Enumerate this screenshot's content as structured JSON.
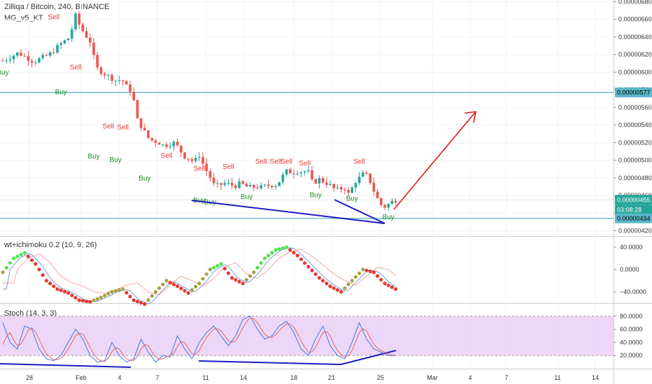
{
  "header": {
    "symbol_title": "Zilliqa / Bitcoin, 240, BINANCE",
    "indicator_label": "MG_v5_KT"
  },
  "panes": {
    "oscillator_label": "wt+ichimoku 0.2 (10, 9, 26)",
    "stoch_label": "Stoch (14, 3, 3)"
  },
  "colors": {
    "up_candle": "#26a69a",
    "down_candle": "#ef5350",
    "level_line": "#5ab8c8",
    "trend_line": "#1b1bc2",
    "arrow": "#e01919",
    "buy_text": "#1f8a2a",
    "sell_text": "#e53935",
    "stoch_fill": "#e6c9f5",
    "stoch_k": "#4a78d8",
    "stoch_d": "#e06666",
    "dot_green": "#4be54b",
    "dot_red": "#e53935",
    "dot_olive": "#a5a34a"
  },
  "chart_data": [
    {
      "type": "candlestick",
      "title": "Zilliqa / Bitcoin, 240, BINANCE",
      "y_axis_ticks": [
        "0.00000680",
        "0.00000660",
        "0.00000640",
        "0.00000620",
        "0.00000600",
        "0.00000580",
        "0.00000560",
        "0.00000540",
        "0.00000520",
        "0.00000500",
        "0.00000480",
        "0.00000460",
        "0.00000440",
        "0.00000420"
      ],
      "ylim": [
        4.14e-06,
        6.82e-06
      ],
      "x_axis_labels": [
        "28",
        "Feb",
        "4",
        "7",
        "11",
        "14",
        "18",
        "21",
        "25",
        "Mar",
        "4",
        "7",
        "11",
        "14"
      ],
      "price_labels": {
        "resistance": "0.00000577",
        "current": "0.00000455",
        "countdown": "03:08:28",
        "support": "0.00000434"
      },
      "horizontal_levels": [
        5.77e-06,
        4.34e-06
      ],
      "close_path": [
        [
          0,
          613
        ],
        [
          3,
          622
        ],
        [
          6,
          612
        ],
        [
          9,
          620
        ],
        [
          11,
          631
        ],
        [
          13,
          640
        ],
        [
          14,
          665
        ],
        [
          15,
          651
        ],
        [
          17,
          634
        ],
        [
          18,
          605
        ],
        [
          20,
          597
        ],
        [
          22,
          590
        ],
        [
          23,
          592
        ],
        [
          24,
          583
        ],
        [
          25,
          578
        ],
        [
          26,
          546
        ],
        [
          27,
          537
        ],
        [
          28,
          526
        ],
        [
          29,
          522
        ],
        [
          30,
          521
        ],
        [
          31,
          517
        ],
        [
          32,
          518
        ],
        [
          33,
          520
        ],
        [
          34,
          514
        ],
        [
          35,
          505
        ],
        [
          36,
          502
        ],
        [
          37,
          498
        ],
        [
          38,
          506
        ],
        [
          39,
          492
        ],
        [
          40,
          482
        ],
        [
          41,
          470
        ],
        [
          43,
          474
        ],
        [
          44,
          472
        ],
        [
          45,
          471
        ],
        [
          46,
          474
        ],
        [
          47,
          470
        ],
        [
          48,
          469
        ],
        [
          49,
          470
        ],
        [
          50,
          469
        ],
        [
          51,
          471
        ],
        [
          52,
          472
        ],
        [
          53,
          472
        ],
        [
          54,
          481
        ],
        [
          55,
          488
        ],
        [
          56,
          486
        ],
        [
          57,
          488
        ],
        [
          58,
          487
        ],
        [
          59,
          488
        ],
        [
          60,
          473
        ],
        [
          61,
          479
        ],
        [
          62,
          476
        ],
        [
          63,
          473
        ],
        [
          64,
          468
        ],
        [
          65,
          466
        ],
        [
          66,
          470
        ],
        [
          67,
          460
        ],
        [
          68,
          475
        ],
        [
          69,
          480
        ],
        [
          70,
          486
        ],
        [
          71,
          477
        ],
        [
          72,
          462
        ],
        [
          73,
          450
        ],
        [
          74,
          447
        ],
        [
          75,
          452
        ],
        [
          76,
          455
        ]
      ],
      "signals": [
        {
          "label": "Buy",
          "x": 0,
          "price": 5.97e-06
        },
        {
          "label": "Sell",
          "x": 14,
          "price": 6.6e-06
        },
        {
          "label": "Sell",
          "x": 20,
          "price": 6.03e-06
        },
        {
          "label": "Buy",
          "x": 16,
          "price": 5.75e-06
        },
        {
          "label": "Sell",
          "x": 29,
          "price": 5.36e-06
        },
        {
          "label": "Sell",
          "x": 33,
          "price": 5.35e-06
        },
        {
          "label": "Buy",
          "x": 25,
          "price": 5.02e-06
        },
        {
          "label": "Buy",
          "x": 31,
          "price": 4.98e-06
        },
        {
          "label": "Sell",
          "x": 45,
          "price": 5.03e-06
        },
        {
          "label": "Buy",
          "x": 39,
          "price": 4.77e-06
        },
        {
          "label": "Sell",
          "x": 54,
          "price": 4.88e-06
        },
        {
          "label": "Sell",
          "x": 62,
          "price": 4.9e-06
        },
        {
          "label": "Buy",
          "x": 54,
          "price": 4.52e-06
        },
        {
          "label": "Buy",
          "x": 57,
          "price": 4.5e-06
        },
        {
          "label": "Buy",
          "x": 67,
          "price": 4.56e-06
        },
        {
          "label": "Sell",
          "x": 71,
          "price": 4.96e-06
        },
        {
          "label": "Sell",
          "x": 75,
          "price": 4.96e-06
        },
        {
          "label": "Sell",
          "x": 78,
          "price": 4.96e-06
        },
        {
          "label": "Sell",
          "x": 83,
          "price": 4.94e-06
        },
        {
          "label": "Buy",
          "x": 86,
          "price": 4.58e-06
        },
        {
          "label": "Sell",
          "x": 98,
          "price": 4.96e-06
        },
        {
          "label": "Buy",
          "x": 96,
          "price": 4.54e-06
        },
        {
          "label": "Buy",
          "x": 106,
          "price": 4.33e-06
        }
      ]
    },
    {
      "type": "line",
      "title": "wt+ichimoku 0.2 (10, 9, 26)",
      "y_axis_ticks": [
        "40.0000",
        "0.0000",
        "−40.0000"
      ],
      "ylim": [
        -60,
        60
      ],
      "wave": [
        [
          0,
          -5
        ],
        [
          3,
          20
        ],
        [
          6,
          30
        ],
        [
          9,
          10
        ],
        [
          12,
          -20
        ],
        [
          15,
          -35
        ],
        [
          18,
          -42
        ],
        [
          21,
          -55
        ],
        [
          24,
          -58
        ],
        [
          27,
          -50
        ],
        [
          30,
          -40
        ],
        [
          33,
          -35
        ],
        [
          36,
          -55
        ],
        [
          39,
          -62
        ],
        [
          42,
          -40
        ],
        [
          45,
          -20
        ],
        [
          48,
          -30
        ],
        [
          51,
          -42
        ],
        [
          54,
          -25
        ],
        [
          57,
          0
        ],
        [
          60,
          10
        ],
        [
          63,
          -15
        ],
        [
          66,
          -25
        ],
        [
          69,
          -5
        ],
        [
          72,
          20
        ],
        [
          75,
          35
        ],
        [
          78,
          40
        ],
        [
          81,
          25
        ],
        [
          84,
          5
        ],
        [
          87,
          -15
        ],
        [
          90,
          -30
        ],
        [
          93,
          -40
        ],
        [
          96,
          -20
        ],
        [
          99,
          0
        ],
        [
          102,
          -5
        ],
        [
          105,
          -25
        ],
        [
          108,
          -35
        ]
      ]
    },
    {
      "type": "line",
      "title": "Stoch (14, 3, 3)",
      "y_axis_ticks": [
        "80.0000",
        "60.0000",
        "40.0000",
        "20.0000"
      ],
      "ylim": [
        0,
        100
      ],
      "band": [
        20,
        80
      ],
      "k": [
        [
          0,
          70
        ],
        [
          2,
          40
        ],
        [
          4,
          30
        ],
        [
          6,
          65
        ],
        [
          8,
          60
        ],
        [
          10,
          30
        ],
        [
          12,
          15
        ],
        [
          14,
          12
        ],
        [
          16,
          20
        ],
        [
          18,
          40
        ],
        [
          20,
          60
        ],
        [
          22,
          45
        ],
        [
          24,
          20
        ],
        [
          26,
          10
        ],
        [
          28,
          12
        ],
        [
          30,
          40
        ],
        [
          32,
          20
        ],
        [
          34,
          10
        ],
        [
          36,
          15
        ],
        [
          38,
          45
        ],
        [
          40,
          25
        ],
        [
          42,
          10
        ],
        [
          44,
          20
        ],
        [
          46,
          18
        ],
        [
          48,
          50
        ],
        [
          50,
          30
        ],
        [
          52,
          15
        ],
        [
          54,
          40
        ],
        [
          56,
          55
        ],
        [
          58,
          65
        ],
        [
          60,
          50
        ],
        [
          62,
          35
        ],
        [
          64,
          50
        ],
        [
          66,
          75
        ],
        [
          68,
          80
        ],
        [
          70,
          60
        ],
        [
          72,
          45
        ],
        [
          74,
          50
        ],
        [
          76,
          65
        ],
        [
          78,
          72
        ],
        [
          80,
          55
        ],
        [
          82,
          30
        ],
        [
          84,
          20
        ],
        [
          86,
          45
        ],
        [
          88,
          65
        ],
        [
          90,
          35
        ],
        [
          92,
          20
        ],
        [
          94,
          15
        ],
        [
          96,
          40
        ],
        [
          98,
          70
        ],
        [
          100,
          45
        ],
        [
          102,
          30
        ],
        [
          104,
          25
        ],
        [
          106,
          20
        ]
      ]
    }
  ]
}
